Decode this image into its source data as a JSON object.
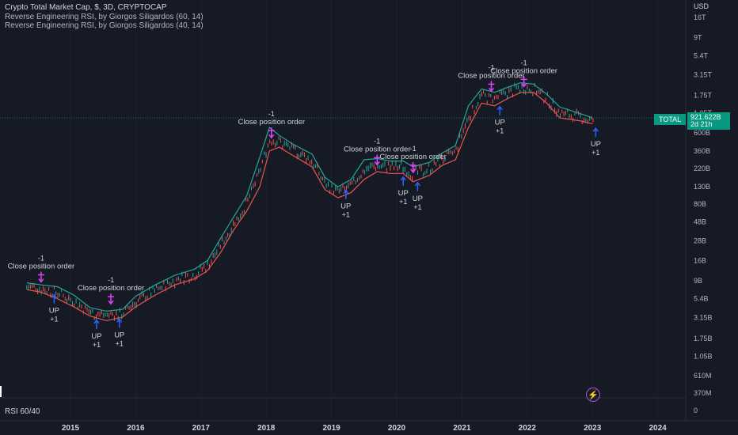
{
  "legend": {
    "title": "Crypto Total Market Cap, $, 3D, CRYPTOCAP",
    "line1": "Reverse Engineering RSI, by Giorgos Siligardos (60, 14)",
    "line2": "Reverse Engineering RSI, by Giorgos Siligardos (40, 14)"
  },
  "price_axis": {
    "currency": "USD",
    "ticks": [
      "16T",
      "9T",
      "5.4T",
      "3.15T",
      "1.75T",
      "1.05T",
      "600B",
      "360B",
      "220B",
      "130B",
      "80B",
      "48B",
      "28B",
      "16B",
      "9B",
      "5.4B",
      "3.15B",
      "1.75B",
      "1.05B",
      "610M",
      "370M",
      "0"
    ]
  },
  "last_price": {
    "symbol": "TOTAL",
    "value": "921.622B",
    "countdown": "2d 21h"
  },
  "rsi_pane": {
    "label": "RSI 60/40"
  },
  "colors": {
    "background": "#161a25",
    "up": "#26a69a",
    "down": "#ef5350",
    "rsi60": "#26a69a",
    "rsi40": "#ef5350",
    "signal_down": "#e040fb",
    "signal_up": "#2962ff",
    "last_price": "#089981"
  },
  "chart_data": {
    "type": "line",
    "title": "Crypto Total Market Cap, $, 3D, CRYPTOCAP",
    "x_axis": {
      "type": "time",
      "ticks": [
        "2015",
        "2016",
        "2017",
        "2018",
        "2019",
        "2020",
        "2021",
        "2022",
        "2023",
        "2024"
      ]
    },
    "y_axis": {
      "scale": "log",
      "unit": "USD"
    },
    "series": [
      {
        "name": "Reverse Engineering RSI, by Giorgos Siligardos (60, 14)",
        "x": [
          2014.33,
          2014.55,
          2014.8,
          2015.05,
          2015.3,
          2015.55,
          2015.8,
          2016.0,
          2016.3,
          2016.6,
          2016.9,
          2017.1,
          2017.3,
          2017.5,
          2017.7,
          2017.9,
          2018.05,
          2018.2,
          2018.4,
          2018.7,
          2018.9,
          2019.1,
          2019.3,
          2019.5,
          2019.7,
          2019.9,
          2020.1,
          2020.25,
          2020.5,
          2020.7,
          2020.9,
          2021.1,
          2021.3,
          2021.5,
          2021.7,
          2021.9,
          2022.1,
          2022.3,
          2022.5,
          2022.8,
          2023.0
        ],
        "y": [
          8500000000.0,
          8000000000.0,
          7600000000.0,
          6000000000.0,
          4200000000.0,
          3800000000.0,
          4000000000.0,
          5800000000.0,
          8000000000.0,
          10500000000.0,
          12500000000.0,
          16000000000.0,
          30000000000.0,
          55000000000.0,
          100000000000.0,
          300000000000.0,
          700000000000.0,
          560000000000.0,
          440000000000.0,
          330000000000.0,
          170000000000.0,
          130000000000.0,
          160000000000.0,
          280000000000.0,
          290000000000.0,
          270000000000.0,
          270000000000.0,
          230000000000.0,
          260000000000.0,
          340000000000.0,
          420000000000.0,
          1300000000000.0,
          2100000000000.0,
          1900000000000.0,
          2200000000000.0,
          2500000000000.0,
          2400000000000.0,
          1800000000000.0,
          1250000000000.0,
          1050000000000.0,
          920000000000.0
        ]
      },
      {
        "name": "Reverse Engineering RSI, by Giorgos Siligardos (40, 14)",
        "x": [
          2014.33,
          2014.55,
          2014.8,
          2015.05,
          2015.3,
          2015.55,
          2015.8,
          2016.0,
          2016.3,
          2016.6,
          2016.9,
          2017.1,
          2017.3,
          2017.5,
          2017.7,
          2017.9,
          2018.05,
          2018.2,
          2018.4,
          2018.7,
          2018.9,
          2019.1,
          2019.3,
          2019.5,
          2019.7,
          2019.9,
          2020.1,
          2020.25,
          2020.5,
          2020.7,
          2020.9,
          2021.1,
          2021.3,
          2021.5,
          2021.7,
          2021.9,
          2022.1,
          2022.3,
          2022.5,
          2022.8,
          2023.0
        ],
        "y": [
          7000000000.0,
          6500000000.0,
          5400000000.0,
          4300000000.0,
          3300000000.0,
          2900000000.0,
          3200000000.0,
          4300000000.0,
          6000000000.0,
          8000000000.0,
          9500000000.0,
          12000000000.0,
          20000000000.0,
          38000000000.0,
          65000000000.0,
          130000000000.0,
          360000000000.0,
          400000000000.0,
          320000000000.0,
          230000000000.0,
          120000000000.0,
          95000000000.0,
          110000000000.0,
          160000000000.0,
          200000000000.0,
          190000000000.0,
          190000000000.0,
          150000000000.0,
          180000000000.0,
          240000000000.0,
          280000000000.0,
          700000000000.0,
          1400000000000.0,
          1300000000000.0,
          1600000000000.0,
          1900000000000.0,
          1900000000000.0,
          1400000000000.0,
          920000000000.0,
          850000000000.0,
          780000000000.0
        ]
      }
    ],
    "signals": [
      {
        "x": 2014.55,
        "y": 9300000000.0,
        "type": "down",
        "label1": "Close position order",
        "label2": "-1"
      },
      {
        "x": 2014.75,
        "y": 6200000000.0,
        "type": "up",
        "label1": "UP",
        "label2": "+1"
      },
      {
        "x": 2015.4,
        "y": 3000000000.0,
        "type": "up",
        "label1": "UP",
        "label2": "+1"
      },
      {
        "x": 2015.62,
        "y": 5000000000.0,
        "type": "down",
        "label1": "Close position order",
        "label2": "-1"
      },
      {
        "x": 2015.75,
        "y": 3100000000.0,
        "type": "up",
        "label1": "UP",
        "label2": "+1"
      },
      {
        "x": 2018.08,
        "y": 560000000000.0,
        "type": "down",
        "label1": "Close position order",
        "label2": "-1"
      },
      {
        "x": 2019.22,
        "y": 120000000000.0,
        "type": "up",
        "label1": "UP",
        "label2": "+1"
      },
      {
        "x": 2019.7,
        "y": 260000000000.0,
        "type": "down",
        "label1": "Close position order",
        "label2": "-1"
      },
      {
        "x": 2020.1,
        "y": 175000000000.0,
        "type": "up",
        "label1": "UP",
        "label2": "+1"
      },
      {
        "x": 2020.25,
        "y": 210000000000.0,
        "type": "down",
        "label1": "Close position order",
        "label2": "-1"
      },
      {
        "x": 2020.32,
        "y": 150000000000.0,
        "type": "up",
        "label1": "UP",
        "label2": "+1"
      },
      {
        "x": 2021.45,
        "y": 2100000000000.0,
        "type": "down",
        "label1": "Close position order",
        "label2": "-1"
      },
      {
        "x": 2021.58,
        "y": 1300000000000.0,
        "type": "up",
        "label1": "UP",
        "label2": "+1"
      },
      {
        "x": 2021.95,
        "y": 2400000000000.0,
        "type": "down",
        "label1": "Close position order",
        "label2": "-1"
      },
      {
        "x": 2023.05,
        "y": 700000000000.0,
        "type": "up",
        "label1": "UP",
        "label2": "+1"
      }
    ]
  }
}
